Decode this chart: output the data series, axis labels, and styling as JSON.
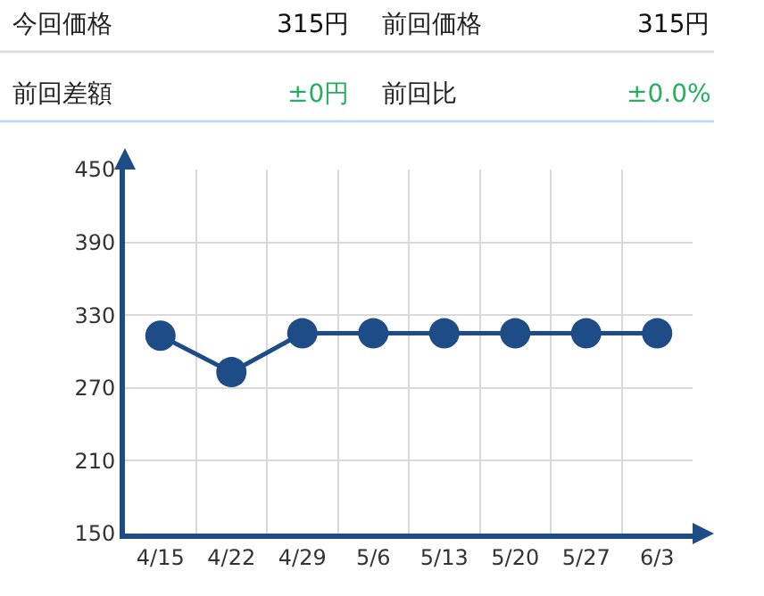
{
  "chart_data": [
    {
      "type": "other",
      "annotations": [
        "今回価格",
        "315円",
        "前回価格",
        "315円",
        "前回差額",
        "±0円",
        "前回比",
        "±0.0%"
      ],
      "colors": [
        "#222222",
        "#111111",
        "#222222",
        "#111111",
        "#222222",
        "#27ae60",
        "#222222",
        "#27ae60"
      ]
    },
    {
      "type": "line",
      "categories": [
        "4/15",
        "4/22",
        "4/29",
        "5/6",
        "5/13",
        "5/20",
        "5/27",
        "6/3"
      ],
      "series": [
        {
          "color": "#1d4c86",
          "values": [
            313,
            283,
            315,
            315,
            315,
            315,
            315,
            315
          ]
        }
      ],
      "ylim": [
        150,
        450
      ],
      "yticks": [
        150,
        210,
        270,
        330,
        390,
        450
      ],
      "grid": true,
      "marker": "circle",
      "line_style": "solid"
    }
  ]
}
